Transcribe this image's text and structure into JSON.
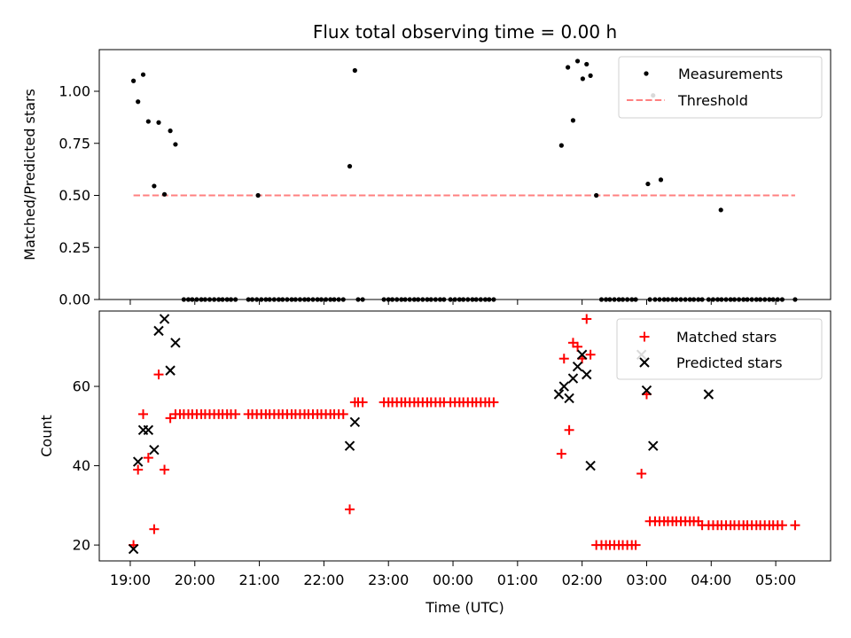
{
  "figure": {
    "title": "Flux total observing time = 0.00 h",
    "xlabel": "Time (UTC)"
  },
  "chart_data": [
    {
      "type": "scatter",
      "panel": "top",
      "ylabel": "Matched/Predicted stars",
      "ylim": [
        0,
        1.2
      ],
      "yticks": [
        0.0,
        0.25,
        0.5,
        0.75,
        1.0
      ],
      "ytick_labels": [
        "0.00",
        "0.25",
        "0.50",
        "0.75",
        "1.00"
      ],
      "xlim": [
        18.52,
        29.85
      ],
      "xticks": [
        19,
        20,
        21,
        22,
        23,
        24,
        25,
        26,
        27,
        28,
        29
      ],
      "xtick_labels": [
        "19:00",
        "20:00",
        "21:00",
        "22:00",
        "23:00",
        "00:00",
        "01:00",
        "02:00",
        "03:00",
        "04:00",
        "05:00"
      ],
      "legend": [
        "Measurements",
        "Threshold"
      ],
      "legend_loc": "upper right",
      "threshold": {
        "name": "Threshold",
        "y": 0.5,
        "x": [
          19.05,
          29.3
        ],
        "color": "#ff8080"
      },
      "series": [
        {
          "name": "Measurements",
          "color": "#000000",
          "x": [
            19.05,
            19.12,
            19.2,
            19.28,
            19.37,
            19.44,
            19.53,
            19.62,
            19.7,
            20.98,
            22.4,
            22.48,
            25.68,
            25.78,
            25.86,
            25.93,
            26.01,
            26.07,
            26.13,
            26.22,
            27.02,
            27.1,
            27.22,
            28.15
          ],
          "y": [
            1.05,
            0.95,
            1.08,
            0.855,
            0.545,
            0.85,
            0.505,
            0.81,
            0.745,
            0.5,
            0.64,
            1.1,
            0.74,
            1.115,
            0.86,
            1.145,
            1.06,
            1.13,
            1.075,
            0.5,
            0.555,
            0.98,
            0.575,
            0.43
          ],
          "zeros_x": [
            19.83,
            19.9,
            19.96,
            20.03,
            20.1,
            20.16,
            20.23,
            20.3,
            20.37,
            20.43,
            20.5,
            20.56,
            20.63,
            20.83,
            20.89,
            20.96,
            21.03,
            21.1,
            21.16,
            21.23,
            21.3,
            21.36,
            21.43,
            21.5,
            21.56,
            21.63,
            21.7,
            21.76,
            21.83,
            21.9,
            21.96,
            22.03,
            22.1,
            22.16,
            22.23,
            22.3,
            22.53,
            22.6,
            22.93,
            23.0,
            23.06,
            23.13,
            23.2,
            23.26,
            23.33,
            23.4,
            23.46,
            23.53,
            23.6,
            23.66,
            23.73,
            23.8,
            23.86,
            23.96,
            24.03,
            24.1,
            24.16,
            24.23,
            24.3,
            24.36,
            24.43,
            24.5,
            24.56,
            24.63,
            26.3,
            26.37,
            26.43,
            26.5,
            26.57,
            26.63,
            26.7,
            26.77,
            26.83,
            27.05,
            27.13,
            27.2,
            27.27,
            27.33,
            27.4,
            27.46,
            27.53,
            27.6,
            27.67,
            27.73,
            27.8,
            27.86,
            27.96,
            28.03,
            28.1,
            28.16,
            28.23,
            28.3,
            28.36,
            28.43,
            28.5,
            28.56,
            28.63,
            28.7,
            28.76,
            28.83,
            28.9,
            28.96,
            29.03,
            29.1,
            29.3
          ]
        }
      ]
    },
    {
      "type": "scatter",
      "panel": "bottom",
      "ylabel": "Count",
      "ylim": [
        16,
        79
      ],
      "yticks": [
        20,
        40,
        60
      ],
      "ytick_labels": [
        "20",
        "40",
        "60"
      ],
      "xlim": [
        18.52,
        29.85
      ],
      "xticks": [
        19,
        20,
        21,
        22,
        23,
        24,
        25,
        26,
        27,
        28,
        29
      ],
      "xtick_labels": [
        "19:00",
        "20:00",
        "21:00",
        "22:00",
        "23:00",
        "00:00",
        "01:00",
        "02:00",
        "03:00",
        "04:00",
        "05:00"
      ],
      "legend": [
        "Matched stars",
        "Predicted stars"
      ],
      "legend_loc": "upper right",
      "series": [
        {
          "name": "Matched stars",
          "marker": "+",
          "color": "#ff0000",
          "points": [
            [
              19.05,
              20
            ],
            [
              19.12,
              39
            ],
            [
              19.2,
              53
            ],
            [
              19.28,
              42
            ],
            [
              19.37,
              24
            ],
            [
              19.44,
              63
            ],
            [
              19.53,
              39
            ],
            [
              19.62,
              52
            ],
            [
              19.7,
              53
            ],
            [
              19.77,
              53
            ],
            [
              19.83,
              53
            ],
            [
              19.9,
              53
            ],
            [
              19.96,
              53
            ],
            [
              20.03,
              53
            ],
            [
              20.1,
              53
            ],
            [
              20.16,
              53
            ],
            [
              20.23,
              53
            ],
            [
              20.3,
              53
            ],
            [
              20.37,
              53
            ],
            [
              20.43,
              53
            ],
            [
              20.5,
              53
            ],
            [
              20.56,
              53
            ],
            [
              20.63,
              53
            ],
            [
              20.83,
              53
            ],
            [
              20.89,
              53
            ],
            [
              20.96,
              53
            ],
            [
              21.03,
              53
            ],
            [
              21.1,
              53
            ],
            [
              21.16,
              53
            ],
            [
              21.23,
              53
            ],
            [
              21.3,
              53
            ],
            [
              21.36,
              53
            ],
            [
              21.43,
              53
            ],
            [
              21.5,
              53
            ],
            [
              21.56,
              53
            ],
            [
              21.63,
              53
            ],
            [
              21.7,
              53
            ],
            [
              21.76,
              53
            ],
            [
              21.83,
              53
            ],
            [
              21.9,
              53
            ],
            [
              21.96,
              53
            ],
            [
              22.03,
              53
            ],
            [
              22.1,
              53
            ],
            [
              22.16,
              53
            ],
            [
              22.23,
              53
            ],
            [
              22.3,
              53
            ],
            [
              22.4,
              29
            ],
            [
              22.48,
              56
            ],
            [
              22.53,
              56
            ],
            [
              22.6,
              56
            ],
            [
              22.93,
              56
            ],
            [
              23.0,
              56
            ],
            [
              23.06,
              56
            ],
            [
              23.13,
              56
            ],
            [
              23.2,
              56
            ],
            [
              23.26,
              56
            ],
            [
              23.33,
              56
            ],
            [
              23.4,
              56
            ],
            [
              23.46,
              56
            ],
            [
              23.53,
              56
            ],
            [
              23.6,
              56
            ],
            [
              23.66,
              56
            ],
            [
              23.73,
              56
            ],
            [
              23.8,
              56
            ],
            [
              23.86,
              56
            ],
            [
              23.96,
              56
            ],
            [
              24.03,
              56
            ],
            [
              24.1,
              56
            ],
            [
              24.16,
              56
            ],
            [
              24.23,
              56
            ],
            [
              24.3,
              56
            ],
            [
              24.36,
              56
            ],
            [
              24.43,
              56
            ],
            [
              24.5,
              56
            ],
            [
              24.56,
              56
            ],
            [
              24.63,
              56
            ],
            [
              25.68,
              43
            ],
            [
              25.72,
              67
            ],
            [
              25.8,
              49
            ],
            [
              25.86,
              71
            ],
            [
              25.93,
              70
            ],
            [
              26.0,
              67
            ],
            [
              26.07,
              77
            ],
            [
              26.13,
              68
            ],
            [
              26.22,
              20
            ],
            [
              26.3,
              20
            ],
            [
              26.37,
              20
            ],
            [
              26.43,
              20
            ],
            [
              26.5,
              20
            ],
            [
              26.57,
              20
            ],
            [
              26.63,
              20
            ],
            [
              26.7,
              20
            ],
            [
              26.77,
              20
            ],
            [
              26.83,
              20
            ],
            [
              26.92,
              38
            ],
            [
              27.0,
              58
            ],
            [
              27.05,
              26
            ],
            [
              27.13,
              26
            ],
            [
              27.2,
              26
            ],
            [
              27.27,
              26
            ],
            [
              27.33,
              26
            ],
            [
              27.4,
              26
            ],
            [
              27.46,
              26
            ],
            [
              27.53,
              26
            ],
            [
              27.6,
              26
            ],
            [
              27.67,
              26
            ],
            [
              27.73,
              26
            ],
            [
              27.8,
              26
            ],
            [
              27.86,
              25
            ],
            [
              27.96,
              25
            ],
            [
              28.03,
              25
            ],
            [
              28.1,
              25
            ],
            [
              28.16,
              25
            ],
            [
              28.23,
              25
            ],
            [
              28.3,
              25
            ],
            [
              28.36,
              25
            ],
            [
              28.43,
              25
            ],
            [
              28.5,
              25
            ],
            [
              28.56,
              25
            ],
            [
              28.63,
              25
            ],
            [
              28.7,
              25
            ],
            [
              28.76,
              25
            ],
            [
              28.83,
              25
            ],
            [
              28.9,
              25
            ],
            [
              28.96,
              25
            ],
            [
              29.03,
              25
            ],
            [
              29.1,
              25
            ],
            [
              29.3,
              25
            ]
          ]
        },
        {
          "name": "Predicted stars",
          "marker": "x",
          "color": "#000000",
          "points": [
            [
              19.05,
              19
            ],
            [
              19.12,
              41
            ],
            [
              19.2,
              49
            ],
            [
              19.28,
              49
            ],
            [
              19.37,
              44
            ],
            [
              19.44,
              74
            ],
            [
              19.53,
              77
            ],
            [
              19.62,
              64
            ],
            [
              19.7,
              71
            ],
            [
              22.4,
              45
            ],
            [
              22.48,
              51
            ],
            [
              25.64,
              58
            ],
            [
              25.72,
              60
            ],
            [
              25.8,
              57
            ],
            [
              25.86,
              62
            ],
            [
              25.93,
              65
            ],
            [
              26.0,
              68
            ],
            [
              26.07,
              63
            ],
            [
              26.13,
              40
            ],
            [
              26.92,
              68
            ],
            [
              27.0,
              59
            ],
            [
              27.1,
              45
            ],
            [
              27.96,
              58
            ]
          ]
        }
      ]
    }
  ]
}
